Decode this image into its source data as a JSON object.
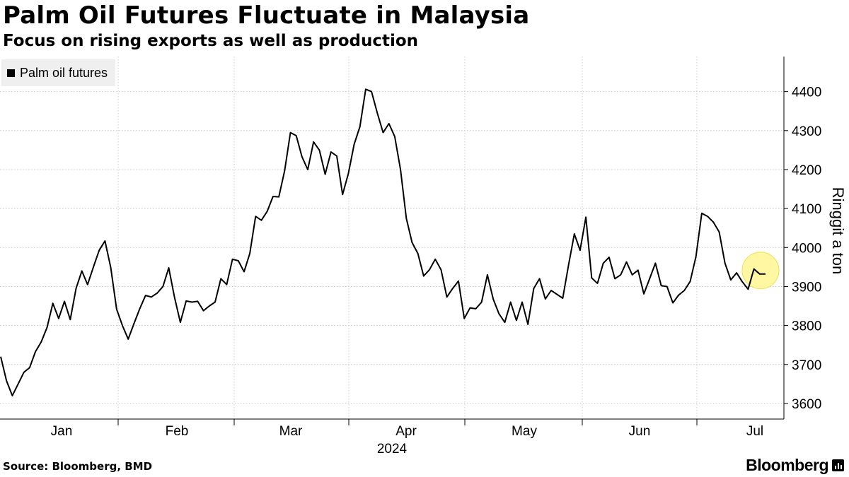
{
  "header": {
    "title": "Palm Oil Futures Fluctuate in Malaysia",
    "subtitle": "Focus on rising exports as well as production"
  },
  "footer": {
    "source": "Source: Bloomberg, BMD",
    "brand": "Bloomberg"
  },
  "colors": {
    "line": "#000000",
    "highlight": "#fff799",
    "legend_bg": "#efefef",
    "grid": "#c8c8c8"
  },
  "chart_data": {
    "type": "line",
    "title": "Palm Oil Futures Fluctuate in Malaysia",
    "subtitle": "Focus on rising exports as well as production",
    "ylabel": "Ringgit a ton",
    "xlabel": "",
    "year_label": "2024",
    "ylim": [
      3560,
      4490
    ],
    "yticks": [
      3600,
      3700,
      3800,
      3900,
      4000,
      4100,
      4200,
      4300,
      4400
    ],
    "y_axis_side": "right",
    "grid": "dotted",
    "legend": "top-left",
    "month_labels": [
      "Jan",
      "Feb",
      "Mar",
      "Apr",
      "May",
      "Jun",
      "Jul"
    ],
    "series": [
      {
        "name": "Palm oil futures",
        "values": [
          3720,
          3658,
          3620,
          3650,
          3680,
          3692,
          3733,
          3758,
          3795,
          3857,
          3818,
          3862,
          3815,
          3895,
          3940,
          3905,
          3950,
          3993,
          4017,
          3948,
          3842,
          3800,
          3765,
          3805,
          3843,
          3877,
          3873,
          3883,
          3900,
          3948,
          3872,
          3808,
          3863,
          3860,
          3862,
          3838,
          3850,
          3860,
          3920,
          3905,
          3970,
          3966,
          3938,
          3985,
          4080,
          4070,
          4093,
          4131,
          4130,
          4197,
          4295,
          4287,
          4233,
          4200,
          4271,
          4250,
          4188,
          4245,
          4235,
          4136,
          4190,
          4265,
          4310,
          4406,
          4400,
          4345,
          4295,
          4318,
          4285,
          4200,
          4075,
          4013,
          3985,
          3927,
          3943,
          3970,
          3943,
          3873,
          3895,
          3914,
          3818,
          3845,
          3843,
          3860,
          3930,
          3868,
          3830,
          3808,
          3860,
          3813,
          3860,
          3803,
          3895,
          3920,
          3868,
          3890,
          3880,
          3870,
          3955,
          4035,
          3993,
          4078,
          3922,
          3908,
          3960,
          3975,
          3920,
          3930,
          3963,
          3930,
          3942,
          3881,
          3920,
          3960,
          3902,
          3900,
          3858,
          3878,
          3890,
          3913,
          3977,
          4088,
          4080,
          4065,
          4040,
          3960,
          3917,
          3935,
          3912,
          3893,
          3945,
          3932,
          3932
        ],
        "highlight_last": true
      }
    ]
  }
}
